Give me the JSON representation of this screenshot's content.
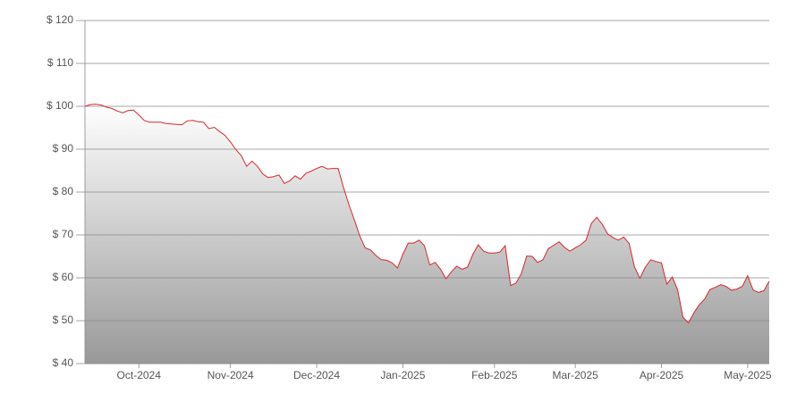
{
  "chart_data": {
    "type": "area-line",
    "categories": [
      null,
      null,
      null,
      null,
      null,
      null,
      null,
      null,
      null,
      null,
      "Oct-2024",
      null,
      null,
      null,
      null,
      null,
      null,
      null,
      null,
      null,
      null,
      null,
      null,
      null,
      null,
      null,
      null,
      "Nov-2024",
      null,
      null,
      null,
      null,
      null,
      null,
      null,
      null,
      null,
      null,
      null,
      null,
      null,
      null,
      null,
      "Dec-2024",
      null,
      null,
      null,
      null,
      null,
      null,
      null,
      null,
      null,
      null,
      null,
      null,
      null,
      null,
      null,
      "Jan-2025",
      null,
      null,
      null,
      null,
      null,
      null,
      null,
      null,
      null,
      null,
      null,
      null,
      null,
      null,
      null,
      null,
      "Feb-2025",
      null,
      null,
      null,
      null,
      null,
      null,
      null,
      null,
      null,
      null,
      null,
      null,
      null,
      null,
      "Mar-2025",
      null,
      null,
      null,
      null,
      null,
      null,
      null,
      null,
      null,
      null,
      null,
      null,
      null,
      null,
      null,
      "Apr-2025",
      null,
      null,
      null,
      null,
      null,
      null,
      null,
      null,
      null,
      null,
      null,
      null,
      null,
      null,
      null,
      "May-2025",
      null,
      null,
      null,
      null
    ],
    "values": [
      100,
      100.4,
      100.5,
      100.3,
      99.8,
      99.5,
      98.9,
      98.5,
      99,
      99.1,
      98,
      96.7,
      96.3,
      96.3,
      96.3,
      96,
      95.9,
      95.8,
      95.7,
      96.6,
      96.7,
      96.4,
      96.3,
      94.8,
      95.1,
      94.1,
      93.2,
      91.7,
      89.9,
      88.5,
      86,
      87.2,
      86,
      84.2,
      83.4,
      83.6,
      84,
      82,
      82.6,
      83.8,
      83,
      84.4,
      84.9,
      85.5,
      86,
      85.4,
      85.5,
      85.5,
      81,
      77,
      73.5,
      69.8,
      67,
      66.5,
      65.2,
      64.2,
      64.1,
      63.5,
      62.3,
      65.5,
      68.1,
      68.1,
      68.8,
      67.5,
      63,
      63.6,
      62,
      59.8,
      61.4,
      62.7,
      62,
      62.5,
      65.5,
      67.7,
      66.2,
      65.8,
      65.8,
      66,
      67.5,
      58.2,
      58.8,
      61,
      65.1,
      65,
      63.6,
      64.2,
      66.8,
      67.6,
      68.4,
      67.1,
      66.2,
      67,
      67.7,
      68.8,
      72.7,
      74.1,
      72.5,
      70.3,
      69.4,
      68.8,
      69.5,
      68,
      62.5,
      59.9,
      62.5,
      64.2,
      63.8,
      63.5,
      58.5,
      60.2,
      57.2,
      50.8,
      49.5,
      51.8,
      53.7,
      55,
      57.3,
      57.8,
      58.4,
      58,
      57.1,
      57.4,
      58,
      60.5,
      57.2,
      56.6,
      57,
      59.2
    ],
    "color": "#d9262e",
    "fill_gradient": [
      "#ffffff",
      "#999999"
    ],
    "ylim": [
      40,
      120
    ],
    "yticks": [
      {
        "value": 40,
        "label": "$ 40"
      },
      {
        "value": 50,
        "label": "$ 50"
      },
      {
        "value": 60,
        "label": "$ 60"
      },
      {
        "value": 70,
        "label": "$ 70"
      },
      {
        "value": 80,
        "label": "$ 80"
      },
      {
        "value": 90,
        "label": "$ 90"
      },
      {
        "value": 100,
        "label": "$ 100"
      },
      {
        "value": 110,
        "label": "$ 110"
      },
      {
        "value": 120,
        "label": "$ 120"
      }
    ],
    "grid": true
  }
}
